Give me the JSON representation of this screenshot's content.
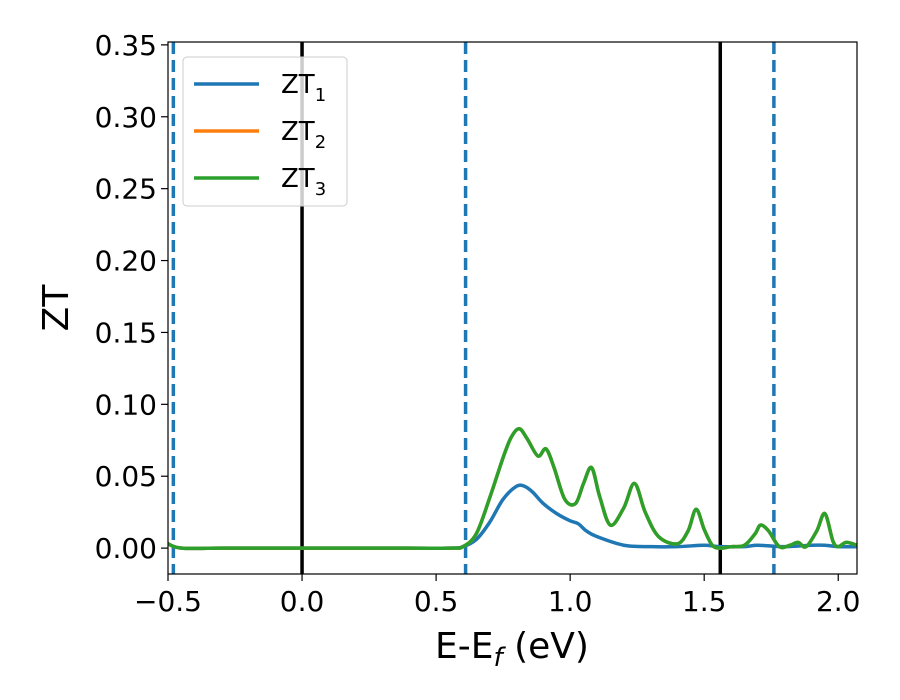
{
  "chart_data": {
    "type": "line",
    "xlabel_main": "E-E",
    "xlabel_sub": "f",
    "xlabel_unit": " (eV)",
    "ylabel": "ZT",
    "xlim": [
      -0.5,
      2.07
    ],
    "ylim": [
      -0.018,
      0.352
    ],
    "xticks": [
      -0.5,
      0.0,
      0.5,
      1.0,
      1.5,
      2.0
    ],
    "xtick_labels": [
      "−0.5",
      "0.0",
      "0.5",
      "1.0",
      "1.5",
      "2.0"
    ],
    "yticks": [
      0.0,
      0.05,
      0.1,
      0.15,
      0.2,
      0.25,
      0.3,
      0.35
    ],
    "ytick_labels": [
      "0.00",
      "0.05",
      "0.10",
      "0.15",
      "0.20",
      "0.25",
      "0.30",
      "0.35"
    ],
    "grid": false,
    "legend_placement": "top-left",
    "vlines": [
      {
        "x": -0.48,
        "style": "dashed",
        "color": "#1f77b4"
      },
      {
        "x": 0.0,
        "style": "solid",
        "color": "#000000"
      },
      {
        "x": 0.61,
        "style": "dashed",
        "color": "#1f77b4"
      },
      {
        "x": 1.56,
        "style": "solid",
        "color": "#000000"
      },
      {
        "x": 1.76,
        "style": "dashed",
        "color": "#1f77b4"
      }
    ],
    "series": [
      {
        "name": "ZT",
        "name_sub": "1",
        "color": "#1f77b4",
        "x": [
          -0.5,
          -0.45,
          -0.3,
          0.0,
          0.3,
          0.55,
          0.6,
          0.65,
          0.7,
          0.75,
          0.8,
          0.83,
          0.86,
          0.9,
          0.95,
          1.0,
          1.03,
          1.06,
          1.1,
          1.2,
          1.3,
          1.4,
          1.5,
          1.56,
          1.65,
          1.7,
          1.8,
          1.9,
          1.95,
          2.0,
          2.07
        ],
        "values": [
          0.003,
          0.0,
          0.0,
          0.0,
          0.0,
          0.0,
          0.001,
          0.006,
          0.018,
          0.034,
          0.043,
          0.043,
          0.039,
          0.031,
          0.024,
          0.019,
          0.017,
          0.012,
          0.008,
          0.002,
          0.001,
          0.001,
          0.002,
          0.001,
          0.001,
          0.002,
          0.001,
          0.002,
          0.002,
          0.001,
          0.001
        ]
      },
      {
        "name": "ZT",
        "name_sub": "2",
        "color": "#ff7f0e",
        "x": [
          -0.5,
          -0.45,
          -0.3,
          0.0,
          0.3,
          0.55,
          0.6,
          0.65,
          0.7,
          0.75,
          0.78,
          0.81,
          0.84,
          0.88,
          0.91,
          0.94,
          0.98,
          1.02,
          1.05,
          1.08,
          1.11,
          1.15,
          1.2,
          1.24,
          1.28,
          1.33,
          1.4,
          1.44,
          1.47,
          1.5,
          1.53,
          1.56,
          1.6,
          1.65,
          1.69,
          1.71,
          1.74,
          1.78,
          1.82,
          1.85,
          1.88,
          1.92,
          1.95,
          1.98,
          2.0,
          2.03,
          2.07
        ],
        "values": [
          0.003,
          0.0,
          0.0,
          0.0,
          0.0,
          0.0,
          0.001,
          0.01,
          0.035,
          0.063,
          0.077,
          0.083,
          0.076,
          0.064,
          0.069,
          0.056,
          0.034,
          0.031,
          0.045,
          0.056,
          0.036,
          0.016,
          0.028,
          0.045,
          0.025,
          0.008,
          0.003,
          0.012,
          0.027,
          0.013,
          0.002,
          0.0,
          0.001,
          0.002,
          0.01,
          0.016,
          0.012,
          0.001,
          0.002,
          0.004,
          0.001,
          0.012,
          0.024,
          0.005,
          0.001,
          0.004,
          0.002
        ]
      },
      {
        "name": "ZT",
        "name_sub": "3",
        "color": "#2ca02c",
        "x": [
          -0.5,
          -0.45,
          -0.3,
          0.0,
          0.3,
          0.55,
          0.6,
          0.65,
          0.7,
          0.75,
          0.78,
          0.81,
          0.84,
          0.88,
          0.91,
          0.94,
          0.98,
          1.02,
          1.05,
          1.08,
          1.11,
          1.15,
          1.2,
          1.24,
          1.28,
          1.33,
          1.4,
          1.44,
          1.47,
          1.5,
          1.53,
          1.56,
          1.6,
          1.65,
          1.69,
          1.71,
          1.74,
          1.78,
          1.82,
          1.85,
          1.88,
          1.92,
          1.95,
          1.98,
          2.0,
          2.03,
          2.07
        ],
        "values": [
          0.003,
          0.0,
          0.0,
          0.0,
          0.0,
          0.0,
          0.001,
          0.01,
          0.035,
          0.063,
          0.077,
          0.083,
          0.076,
          0.064,
          0.069,
          0.056,
          0.034,
          0.031,
          0.045,
          0.056,
          0.036,
          0.016,
          0.028,
          0.045,
          0.025,
          0.008,
          0.003,
          0.012,
          0.027,
          0.013,
          0.002,
          0.0,
          0.001,
          0.002,
          0.01,
          0.016,
          0.012,
          0.001,
          0.002,
          0.004,
          0.001,
          0.012,
          0.024,
          0.005,
          0.001,
          0.004,
          0.002
        ]
      }
    ]
  }
}
